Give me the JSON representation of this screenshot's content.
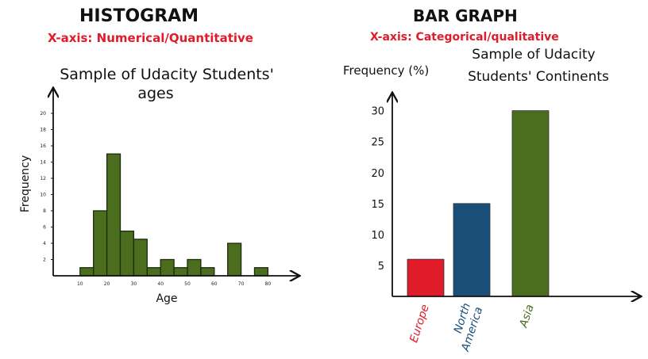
{
  "left_panel": {
    "heading": "HISTOGRAM",
    "subheading": "X-axis: Numerical/Quantitative"
  },
  "right_panel": {
    "heading": "BAR GRAPH",
    "subheading": "X-axis: Categorical/qualitative"
  },
  "colors": {
    "red": "#e01b2a",
    "green": "#4a6e1e",
    "blue": "#1a4f7a",
    "axis": "#111111"
  },
  "chart_data": [
    {
      "type": "bar",
      "subtype": "histogram",
      "title": "Sample of Udacity Students' ages",
      "xlabel": "Age",
      "ylabel": "Frequency",
      "xlim": [
        0,
        90
      ],
      "ylim": [
        0,
        20
      ],
      "x_ticks": [
        "10",
        "20",
        "30",
        "40",
        "50",
        "60",
        "70",
        "80"
      ],
      "y_ticks": [
        "2",
        "4",
        "6",
        "8",
        "10",
        "12",
        "14",
        "16",
        "18",
        "20"
      ],
      "bin_width": 5,
      "bins": [
        {
          "start": 10,
          "value": 1
        },
        {
          "start": 15,
          "value": 8
        },
        {
          "start": 20,
          "value": 15
        },
        {
          "start": 25,
          "value": 5.5
        },
        {
          "start": 30,
          "value": 4.5
        },
        {
          "start": 35,
          "value": 1
        },
        {
          "start": 40,
          "value": 2
        },
        {
          "start": 45,
          "value": 1
        },
        {
          "start": 50,
          "value": 2
        },
        {
          "start": 55,
          "value": 1
        },
        {
          "start": 65,
          "value": 4
        },
        {
          "start": 75,
          "value": 1
        }
      ],
      "color": "#4a6e1e",
      "grid": false
    },
    {
      "type": "bar",
      "title": "Sample of Udacity Students' Continents",
      "xlabel": "",
      "ylabel": "Frequency (%)",
      "ylim": [
        0,
        32
      ],
      "y_ticks": [
        "5",
        "10",
        "15",
        "20",
        "25",
        "30"
      ],
      "categories": [
        "Europe",
        "North America",
        "Asia"
      ],
      "values": [
        6,
        15,
        30
      ],
      "colors": [
        "#e01b2a",
        "#1a4f7a",
        "#4a6e1e"
      ],
      "grid": false
    }
  ]
}
